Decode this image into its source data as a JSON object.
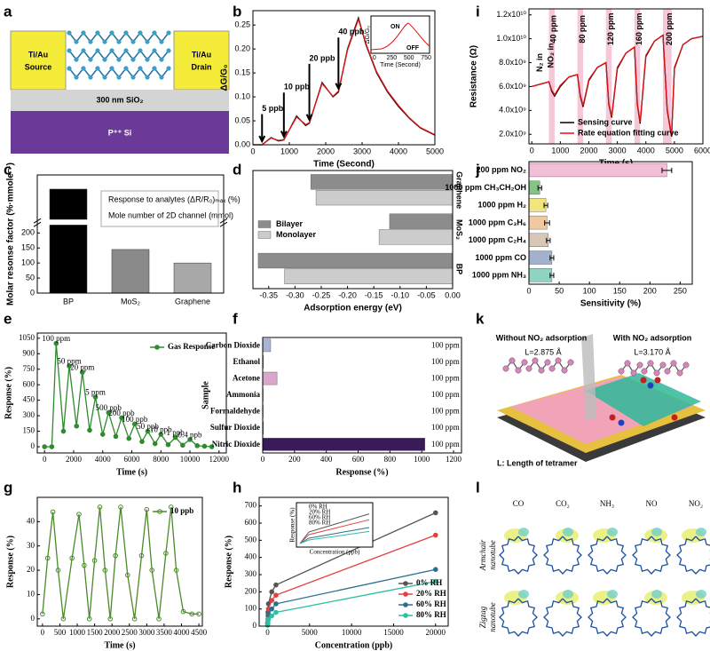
{
  "diagrams": {
    "a": {
      "panel": "a",
      "source": [
        "Ti/Au",
        "Source"
      ],
      "drain": [
        "Ti/Au",
        "Drain"
      ],
      "oxide": "300 nm SiO₂",
      "substrate": "P⁺⁺ Si"
    },
    "k": {
      "panel": "k",
      "left_title": "Without NO₂ adsorption",
      "right_title": "With NO₂ adsorption",
      "left_length": "L=2.875 Å",
      "right_length": "L=3.170 Å",
      "caption": "L: Length of tetramer"
    },
    "l": {
      "panel": "l",
      "columns": [
        "CO",
        "CO₂",
        "NH₃",
        "NO",
        "NO₂"
      ],
      "rows": [
        [
          "Armchair",
          "nanotube"
        ],
        [
          "Zigzag",
          "nanotube"
        ]
      ]
    }
  },
  "chart_data": [
    {
      "panel": "b",
      "type": "line",
      "xlabel": "Time (Second)",
      "ylabel": "ΔG/G₀",
      "x": [
        0,
        250,
        500,
        700,
        850,
        1200,
        1450,
        1550,
        1900,
        2200,
        2350,
        2600,
        2900,
        3100,
        3400,
        3700,
        4000,
        4300,
        4600,
        5000
      ],
      "series": [
        {
          "name": "Measured",
          "color": "#000000",
          "values": [
            0,
            0,
            0.015,
            0.008,
            0.01,
            0.06,
            0.04,
            0.045,
            0.13,
            0.1,
            0.11,
            0.2,
            0.265,
            0.21,
            0.15,
            0.11,
            0.08,
            0.055,
            0.035,
            0.02
          ]
        },
        {
          "name": "Fit",
          "color": "#e01010",
          "values": [
            0,
            0,
            0.014,
            0.009,
            0.011,
            0.058,
            0.042,
            0.046,
            0.128,
            0.101,
            0.112,
            0.198,
            0.262,
            0.212,
            0.152,
            0.112,
            0.082,
            0.056,
            0.036,
            0.021
          ]
        }
      ],
      "xlim": [
        0,
        5000
      ],
      "xticks": [
        0,
        1000,
        2000,
        3000,
        4000,
        5000
      ],
      "ylim": [
        0,
        0.28
      ],
      "yticks": [
        {
          "value": 0,
          "label": "0.00"
        },
        0.05,
        {
          "value": 0.1,
          "label": "0.10"
        },
        0.15,
        {
          "value": 0.2,
          "label": "0.20"
        },
        0.25
      ],
      "annotation_arrows": true,
      "annotations": [
        {
          "text": "5 ppb",
          "x": 250,
          "y": 0.075
        },
        {
          "text": "10 ppb",
          "x": 850,
          "y": 0.12
        },
        {
          "text": "20 ppb",
          "x": 1550,
          "y": 0.18
        },
        {
          "text": "40 ppb",
          "x": 2350,
          "y": 0.235
        }
      ],
      "inset": {
        "ylabel": "ΔG/G₀",
        "xlabel": "Time (Second)",
        "xlim": [
          -50,
          800
        ],
        "xticks": [
          0,
          250,
          500,
          750
        ],
        "annotations": [
          "ON",
          "OFF"
        ]
      }
    },
    {
      "panel": "i",
      "type": "line",
      "xlabel": "Time (s)",
      "ylabel": "Resistance (Ω)",
      "x": [
        0,
        300,
        600,
        700,
        800,
        1000,
        1300,
        1600,
        1700,
        1800,
        2000,
        2300,
        2600,
        2700,
        2800,
        3000,
        3300,
        3600,
        3700,
        3800,
        4000,
        4300,
        4600,
        4750,
        4900,
        5000,
        5300,
        5600,
        6000
      ],
      "series": [
        {
          "name": "Sensing curve",
          "color": "#000000",
          "values": [
            6000000000.0,
            6200000000.0,
            6400000000.0,
            5600000000.0,
            5200000000.0,
            6000000000.0,
            6800000000.0,
            7000000000.0,
            5200000000.0,
            4300000000.0,
            6500000000.0,
            7600000000.0,
            8000000000.0,
            4500000000.0,
            3400000000.0,
            7500000000.0,
            8800000000.0,
            9300000000.0,
            4500000000.0,
            2900000000.0,
            8500000000.0,
            9800000000.0,
            10300000000.0,
            4000000000.0,
            1800000000.0,
            7500000000.0,
            9500000000.0,
            10000000000.0,
            10200000000.0
          ]
        },
        {
          "name": "Rate equation fitting curve",
          "color": "#e01010",
          "values": [
            6000000000.0,
            6200000000.0,
            6400000000.0,
            5700000000.0,
            5300000000.0,
            6100000000.0,
            6800000000.0,
            7000000000.0,
            5300000000.0,
            4400000000.0,
            6600000000.0,
            7600000000.0,
            8000000000.0,
            4600000000.0,
            3500000000.0,
            7600000000.0,
            8800000000.0,
            9300000000.0,
            4600000000.0,
            3000000000.0,
            8600000000.0,
            9800000000.0,
            10300000000.0,
            4100000000.0,
            1900000000.0,
            7600000000.0,
            9500000000.0,
            10000000000.0,
            10200000000.0
          ]
        }
      ],
      "xlim": [
        -100,
        6000
      ],
      "xticks": [
        0,
        1000,
        2000,
        3000,
        4000,
        5000,
        6000
      ],
      "ylim": [
        1200000000.0,
        12500000000.0
      ],
      "yticks": [
        {
          "value": 2000000000.0,
          "label": "2.0x10⁹"
        },
        {
          "value": 4000000000.0,
          "label": "4.0x10⁹"
        },
        {
          "value": 6000000000.0,
          "label": "6.0x10⁹"
        },
        {
          "value": 8000000000.0,
          "label": "8.0x10⁹"
        },
        {
          "value": 10000000000.0,
          "label": "1.0x10¹⁰"
        },
        {
          "value": 12000000000.0,
          "label": "1.2x10¹⁰"
        }
      ],
      "bands": [
        [
          600,
          800
        ],
        [
          1600,
          1800
        ],
        [
          2600,
          2800
        ],
        [
          3600,
          3800
        ],
        [
          4600,
          4900
        ]
      ],
      "band_color": "#f4b8d0",
      "annotations_vertical": true,
      "annotations": [
        {
          "text": "N₂ in",
          "x": 300,
          "y": 8000000000.0
        },
        {
          "text": "NO₂ in",
          "x": 680,
          "y": 8600000000.0
        },
        {
          "text": "40 ppm",
          "x": 780,
          "y": 10800000000.0
        },
        {
          "text": "80 ppm",
          "x": 1780,
          "y": 10800000000.0
        },
        {
          "text": "120 ppm",
          "x": 2780,
          "y": 10800000000.0
        },
        {
          "text": "160 ppm",
          "x": 3780,
          "y": 10800000000.0
        },
        {
          "text": "200 ppm",
          "x": 4830,
          "y": 10800000000.0
        }
      ],
      "legend": "lower right"
    },
    {
      "panel": "c",
      "type": "bar",
      "ylabel": "Molar resonse factor (%·mmole⁻¹)",
      "categories": [
        "BP",
        "MoS₂",
        "Graphene"
      ],
      "values": [
        900,
        145,
        100
      ],
      "colors": [
        "#000000",
        "#8a8a8a",
        "#a8a8a8"
      ],
      "ylim": [
        0,
        1000
      ],
      "axis_break": [
        220,
        700
      ],
      "yticks": [
        0,
        50,
        100,
        150,
        200
      ],
      "notes": [
        "Response to analytes (ΔR/R₀)ₘₐₓ (%)",
        "Mole number of 2D channel (mmol)"
      ]
    },
    {
      "panel": "d",
      "type": "bar",
      "horizontal": true,
      "xlabel": "Adsorption energy (eV)",
      "categories": [
        "Graphene",
        "MoS₂",
        "BP"
      ],
      "series": [
        {
          "name": "Bilayer",
          "color": "#8c8c8c",
          "values": [
            -0.27,
            -0.12,
            -0.37
          ]
        },
        {
          "name": "Monolayer",
          "color": "#cccccc",
          "values": [
            -0.26,
            -0.14,
            -0.32
          ]
        }
      ],
      "xlim": [
        -0.38,
        0
      ],
      "xticks": [
        -0.35,
        {
          "value": -0.3,
          "label": "-0.30"
        },
        -0.25,
        {
          "value": -0.2,
          "label": "-0.20"
        },
        -0.15,
        {
          "value": -0.1,
          "label": "-0.10"
        },
        -0.05,
        {
          "value": 0,
          "label": "0.00"
        }
      ],
      "legend": "center left"
    },
    {
      "panel": "j",
      "type": "bar",
      "horizontal": true,
      "xlabel": "Sensitivity (%)",
      "categories": [
        "200 ppm NO₂",
        "1000 ppm CH₃CH₂OH",
        "1000 ppm H₂",
        "1000 ppm C₃H₆",
        "1000 ppm C₂H₄",
        "1000 ppm CO",
        "1000 ppm NH₃"
      ],
      "values": [
        228,
        18,
        28,
        30,
        32,
        38,
        38
      ],
      "errors": [
        8,
        3,
        3,
        4,
        3,
        3,
        3
      ],
      "colors": [
        "#f3bfd6",
        "#86c486",
        "#f2e57c",
        "#f1c9a0",
        "#d8c7b4",
        "#a3b2cc",
        "#8fd3c2"
      ],
      "xlim": [
        0,
        270
      ],
      "xticks": [
        0,
        50,
        100,
        150,
        200,
        250
      ]
    },
    {
      "panel": "e",
      "type": "line",
      "markers": true,
      "xlabel": "Time (s)",
      "ylabel": "Response (%)",
      "x": [
        0,
        500,
        800,
        1300,
        1700,
        2200,
        2600,
        3100,
        3500,
        4000,
        4400,
        4900,
        5300,
        5800,
        6200,
        6700,
        7100,
        7600,
        8000,
        8500,
        9000,
        9500,
        10000,
        10500,
        11000,
        11500
      ],
      "series": [
        {
          "name": "Gas Response",
          "color": "#2e8b2e",
          "values": [
            0,
            0,
            1000,
            150,
            780,
            200,
            720,
            160,
            480,
            120,
            330,
            100,
            280,
            80,
            220,
            50,
            150,
            30,
            120,
            20,
            90,
            15,
            70,
            10,
            5,
            0
          ]
        }
      ],
      "xlim": [
        -500,
        12500
      ],
      "xticks": [
        0,
        2000,
        4000,
        6000,
        8000,
        10000,
        12000
      ],
      "ylim": [
        -60,
        1100
      ],
      "yticks": [
        0,
        150,
        300,
        450,
        600,
        750,
        900,
        1050
      ],
      "annotations": [
        {
          "text": "100 ppm",
          "x": 800,
          "y": 1040
        },
        {
          "text": "50 ppm",
          "x": 1700,
          "y": 820
        },
        {
          "text": "20 ppm",
          "x": 2600,
          "y": 760
        },
        {
          "text": "5 ppm",
          "x": 3500,
          "y": 520
        },
        {
          "text": "500 ppb",
          "x": 4400,
          "y": 370
        },
        {
          "text": "200 ppb",
          "x": 5300,
          "y": 320
        },
        {
          "text": "100 ppb",
          "x": 6200,
          "y": 260
        },
        {
          "text": "50 ppb",
          "x": 7100,
          "y": 190
        },
        {
          "text": "10 ppb",
          "x": 8000,
          "y": 160
        },
        {
          "text": "1 ppb",
          "x": 9000,
          "y": 130
        },
        {
          "text": "0.4 ppb",
          "x": 10000,
          "y": 110
        }
      ],
      "legend": "upper right"
    },
    {
      "panel": "f",
      "type": "bar",
      "horizontal": true,
      "xlabel": "Response (%)",
      "ylabel": "Sample",
      "categories": [
        "Carbon Dioxide",
        "Ethanol",
        "Acetone",
        "Ammonia",
        "Formaldehyde",
        "Sulfur Dioxide",
        "Nitric Dioxide"
      ],
      "values": [
        50,
        5,
        90,
        3,
        3,
        5,
        1020
      ],
      "colors": [
        "#a8b4d4",
        "#e8d8e8",
        "#d9a6cd",
        "#eeeeee",
        "#eeeeee",
        "#c8b4dc",
        "#3b1a5a"
      ],
      "concentration_labels": [
        "100 ppm",
        "100 ppm",
        "100 ppm",
        "100 ppm",
        "100 ppm",
        "100 ppm",
        "100 ppm"
      ],
      "xlim": [
        0,
        1250
      ],
      "xticks": [
        0,
        200,
        400,
        600,
        800,
        1000,
        1200
      ]
    },
    {
      "panel": "g",
      "type": "line",
      "markers": true,
      "hollow": true,
      "xlabel": "Time (s)",
      "ylabel": "Response (%)",
      "x": [
        0,
        150,
        300,
        450,
        600,
        850,
        1050,
        1200,
        1350,
        1500,
        1650,
        1800,
        1950,
        2100,
        2250,
        2450,
        2650,
        2850,
        3000,
        3150,
        3350,
        3550,
        3700,
        3850,
        4050,
        4300,
        4500
      ],
      "series": [
        {
          "name": "10 ppb",
          "color": "#4a8a2a",
          "values": [
            2,
            25,
            44,
            20,
            0,
            25,
            43,
            22,
            0,
            24,
            46,
            20,
            0,
            26,
            46,
            18,
            0,
            26,
            45,
            20,
            0,
            27,
            46,
            20,
            3,
            2,
            2
          ]
        }
      ],
      "xlim": [
        -150,
        4600
      ],
      "xticks": [
        0,
        500,
        1000,
        1500,
        2000,
        2500,
        3000,
        3500,
        4000,
        4500
      ],
      "ylim": [
        -3,
        50
      ],
      "yticks": [
        0,
        10,
        20,
        30,
        40
      ],
      "legend": "upper right"
    },
    {
      "panel": "h",
      "type": "line",
      "markers": true,
      "xlabel": "Concentration (ppb)",
      "ylabel": "Response (%)",
      "x": [
        10,
        50,
        100,
        500,
        1000,
        20000
      ],
      "series": [
        {
          "name": "0% RH",
          "color": "#555555",
          "values": [
            20,
            80,
            130,
            200,
            240,
            660
          ]
        },
        {
          "name": "20% RH",
          "color": "#e04040",
          "values": [
            15,
            60,
            100,
            150,
            180,
            530
          ]
        },
        {
          "name": "60% RH",
          "color": "#2a6f8f",
          "values": [
            10,
            40,
            70,
            100,
            130,
            330
          ]
        },
        {
          "name": "80% RH",
          "color": "#2ac0a0",
          "values": [
            5,
            20,
            40,
            60,
            80,
            260
          ]
        }
      ],
      "xlim": [
        -1000,
        21500
      ],
      "xticks": [
        0,
        5000,
        10000,
        15000,
        20000
      ],
      "ylim": [
        0,
        750
      ],
      "yticks": [
        0,
        100,
        200,
        300,
        400,
        500,
        600,
        700
      ],
      "legend": "lower right",
      "inset": true
    }
  ]
}
